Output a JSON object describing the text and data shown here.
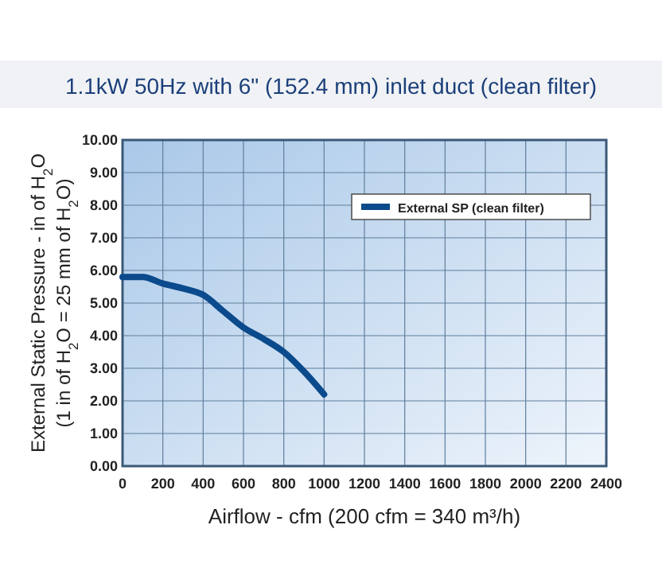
{
  "chart_data": {
    "type": "line",
    "title": "1.1kW 50Hz with 6\" (152.4 mm) inlet duct (clean filter)",
    "xlabel": "Airflow - cfm (200 cfm = 340 m³/h)",
    "ylabel": "External Static Pressure - in of H$_{2}$O\n(1 in of H$_{2}$O = 25 mm of H$_{2}$O)",
    "x": [
      0,
      100,
      200,
      300,
      400,
      500,
      600,
      700,
      800,
      900,
      1000
    ],
    "series": [
      {
        "name": "External SP (clean filter)",
        "color": "#0b4a8c",
        "values": [
          5.8,
          5.8,
          5.6,
          5.45,
          5.25,
          4.75,
          4.25,
          3.9,
          3.5,
          2.9,
          2.2
        ]
      }
    ],
    "xlim": [
      0,
      2400
    ],
    "xticks": [
      0,
      200,
      400,
      600,
      800,
      1000,
      1200,
      1400,
      1600,
      1800,
      2000,
      2200,
      2400
    ],
    "ylim": [
      0,
      10
    ],
    "yticks": [
      {
        "value": 0,
        "label": "0.00"
      },
      {
        "value": 1,
        "label": "1.00"
      },
      {
        "value": 2,
        "label": "2.00"
      },
      {
        "value": 3,
        "label": "3.00"
      },
      {
        "value": 4,
        "label": "4.00"
      },
      {
        "value": 5,
        "label": "5.00"
      },
      {
        "value": 6,
        "label": "6.00"
      },
      {
        "value": 7,
        "label": "7.00"
      },
      {
        "value": 8,
        "label": "8.00"
      },
      {
        "value": 9,
        "label": "9.00"
      },
      {
        "value": 10,
        "label": "10.00"
      }
    ],
    "grid": true,
    "legend": "top right"
  }
}
